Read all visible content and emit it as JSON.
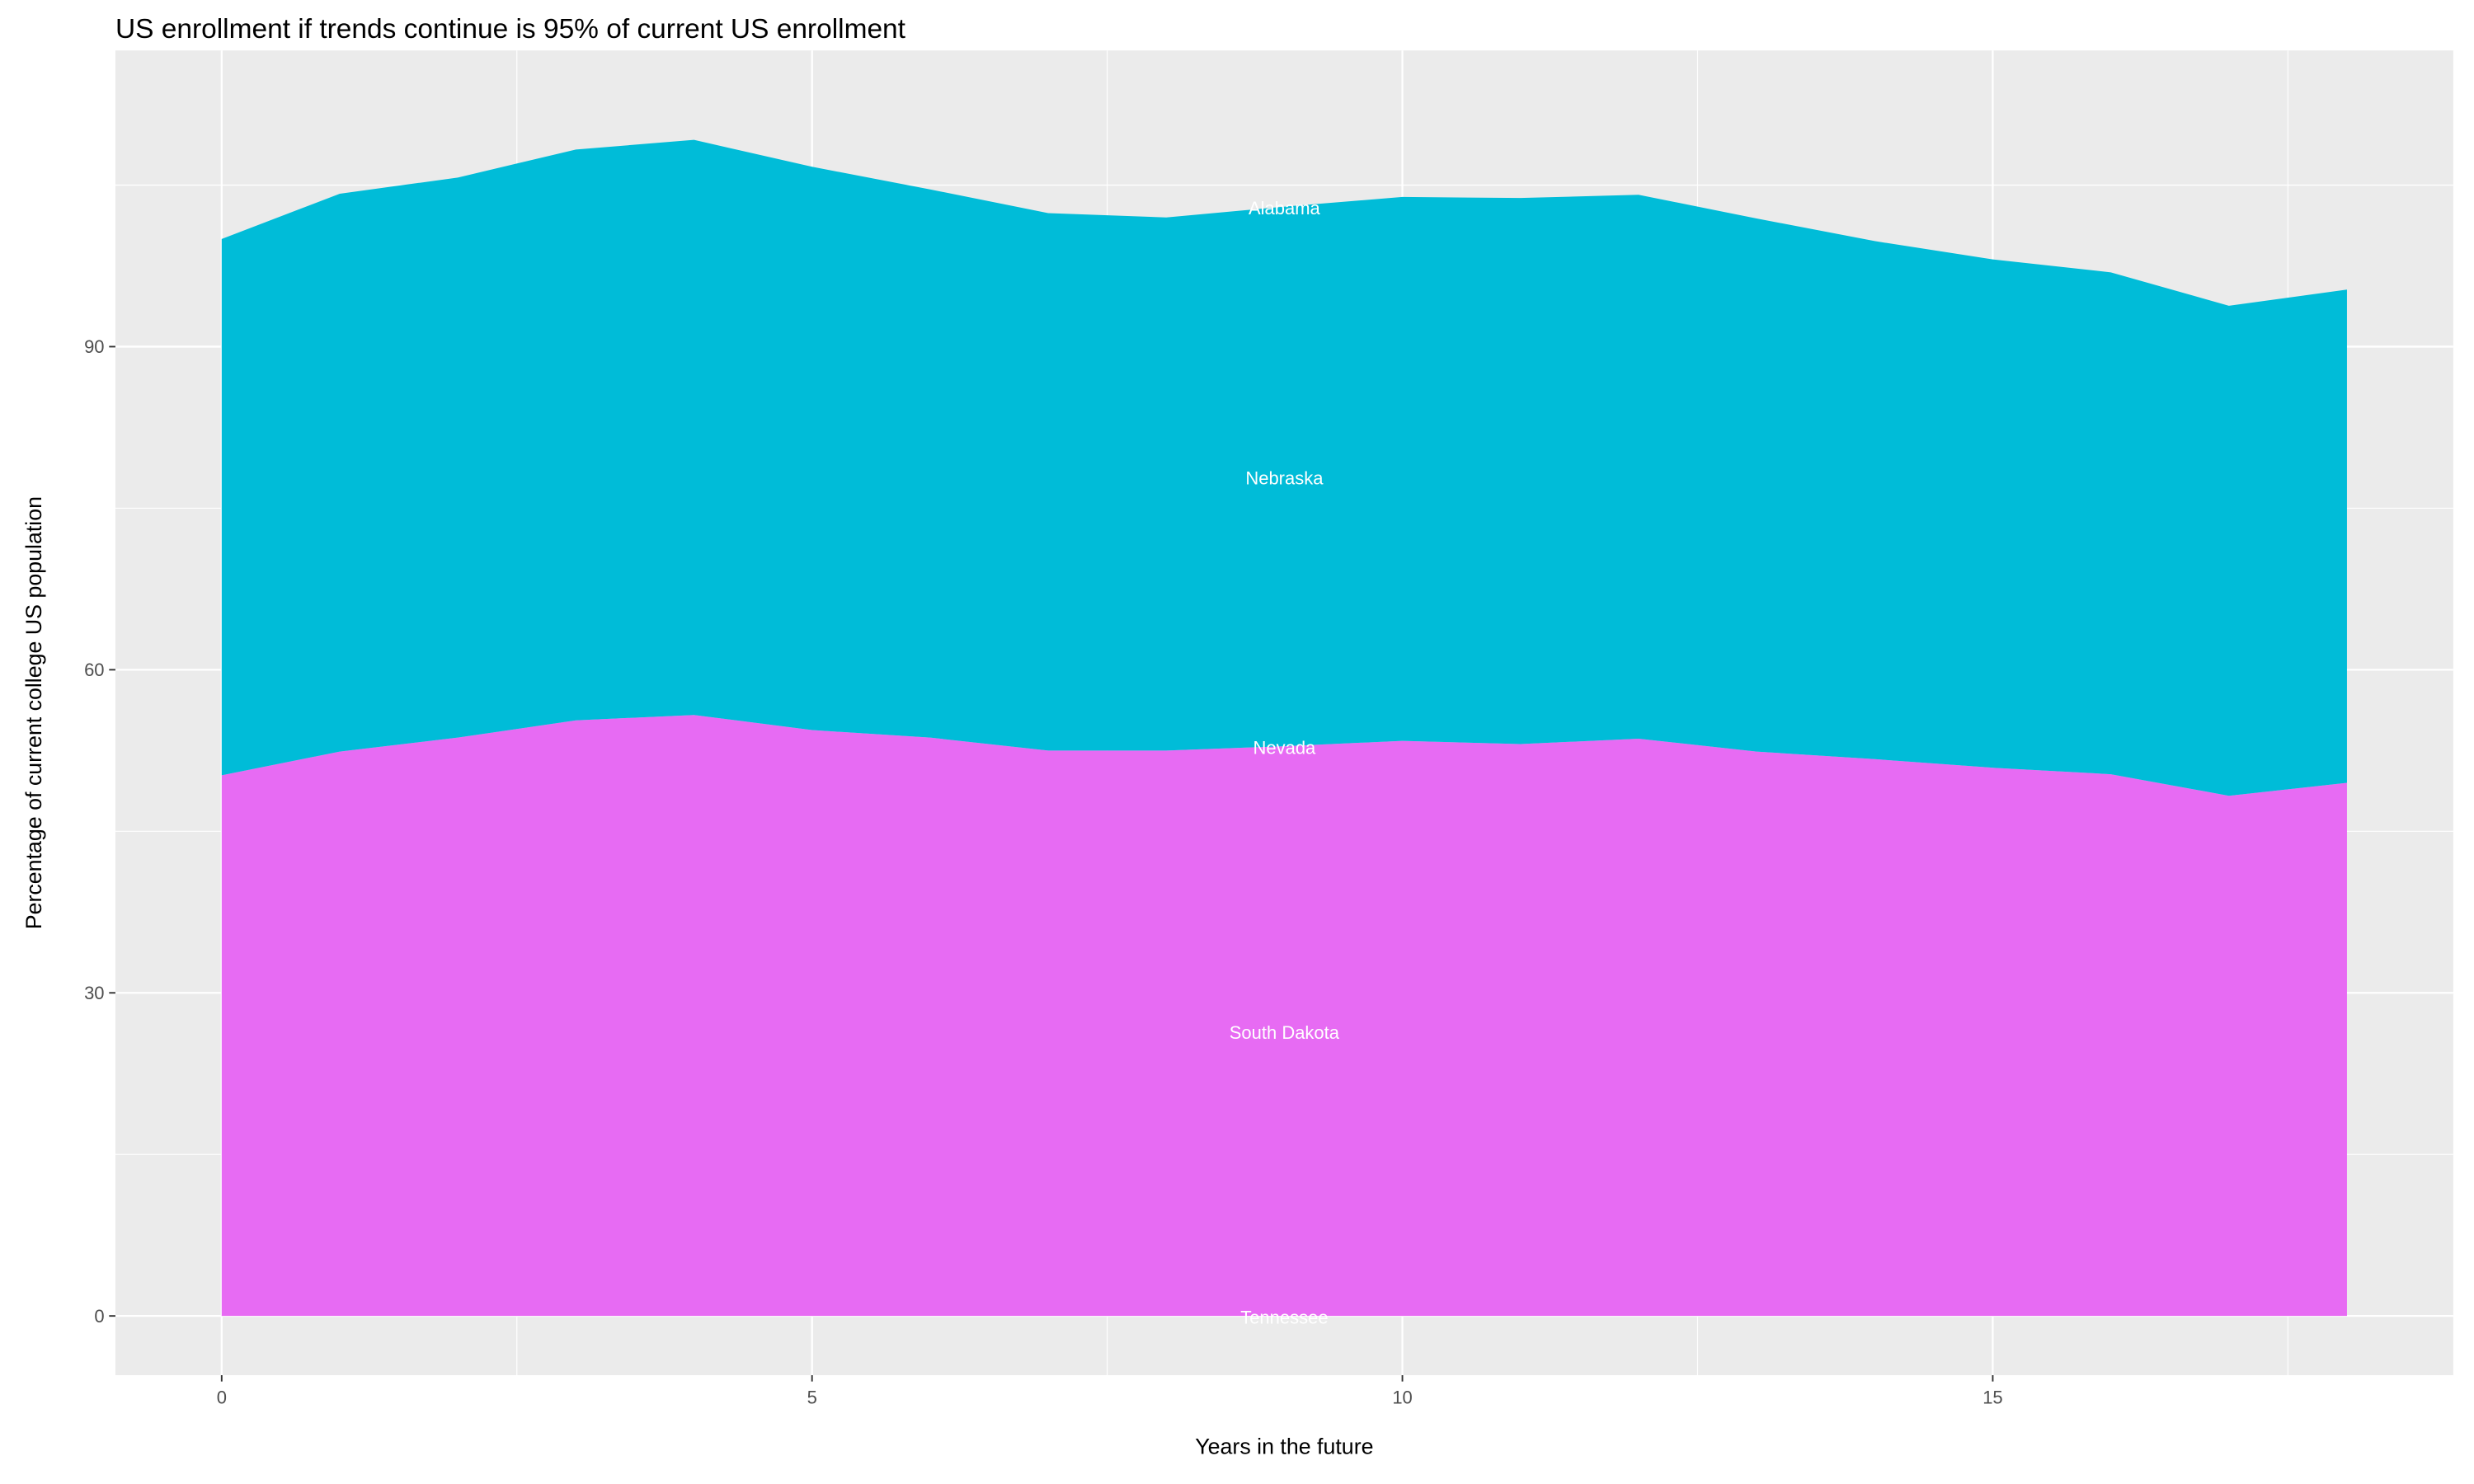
{
  "chart_data": {
    "type": "area",
    "stacked": true,
    "title": "US enrollment if trends continue is 95% of current US enrollment",
    "xlabel": "Years in the future",
    "ylabel": "Percentage of current college US population",
    "xlim": [
      -0.9,
      18.9
    ],
    "ylim": [
      -5.5,
      117.5
    ],
    "x_ticks": [
      0,
      5,
      10,
      15
    ],
    "y_ticks": [
      0,
      30,
      60,
      90
    ],
    "grid": true,
    "legend": "none",
    "label_at_x": 9,
    "x": [
      0,
      1,
      2,
      3,
      4,
      5,
      6,
      7,
      8,
      9,
      10,
      11,
      12,
      13,
      14,
      15,
      16,
      17,
      18
    ],
    "series": [
      {
        "name": "Tennessee",
        "color": "#F8766D",
        "values": [
          0,
          0,
          0,
          0,
          0,
          0,
          0,
          0,
          0,
          0,
          0,
          0,
          0,
          0,
          0,
          0,
          0,
          0,
          0
        ]
      },
      {
        "name": "South Dakota",
        "color": "#E76BF3",
        "values": [
          50.2,
          52.4,
          53.7,
          55.3,
          55.8,
          54.4,
          53.7,
          52.5,
          52.5,
          52.9,
          53.4,
          53.1,
          53.6,
          52.4,
          51.7,
          50.9,
          50.3,
          48.3,
          49.5
        ]
      },
      {
        "name": "Nevada",
        "color": "#00BF7D",
        "values": [
          0,
          0,
          0,
          0,
          0,
          0,
          0,
          0,
          0,
          0,
          0,
          0,
          0,
          0,
          0,
          0,
          0,
          0,
          0
        ]
      },
      {
        "name": "Nebraska",
        "color": "#00BCD8",
        "values": [
          49.8,
          51.8,
          52.0,
          53.0,
          53.4,
          52.3,
          50.9,
          49.9,
          49.5,
          50.1,
          50.5,
          50.7,
          50.5,
          49.5,
          48.1,
          47.2,
          46.6,
          45.5,
          45.8
        ]
      },
      {
        "name": "Alabama",
        "color": "#A3A500",
        "values": [
          0,
          0,
          0,
          0,
          0,
          0,
          0,
          0,
          0,
          0,
          0,
          0,
          0,
          0,
          0,
          0,
          0,
          0,
          0
        ]
      }
    ],
    "panel_color": "#EBEBEB",
    "label_color": "#FFFFFF"
  }
}
